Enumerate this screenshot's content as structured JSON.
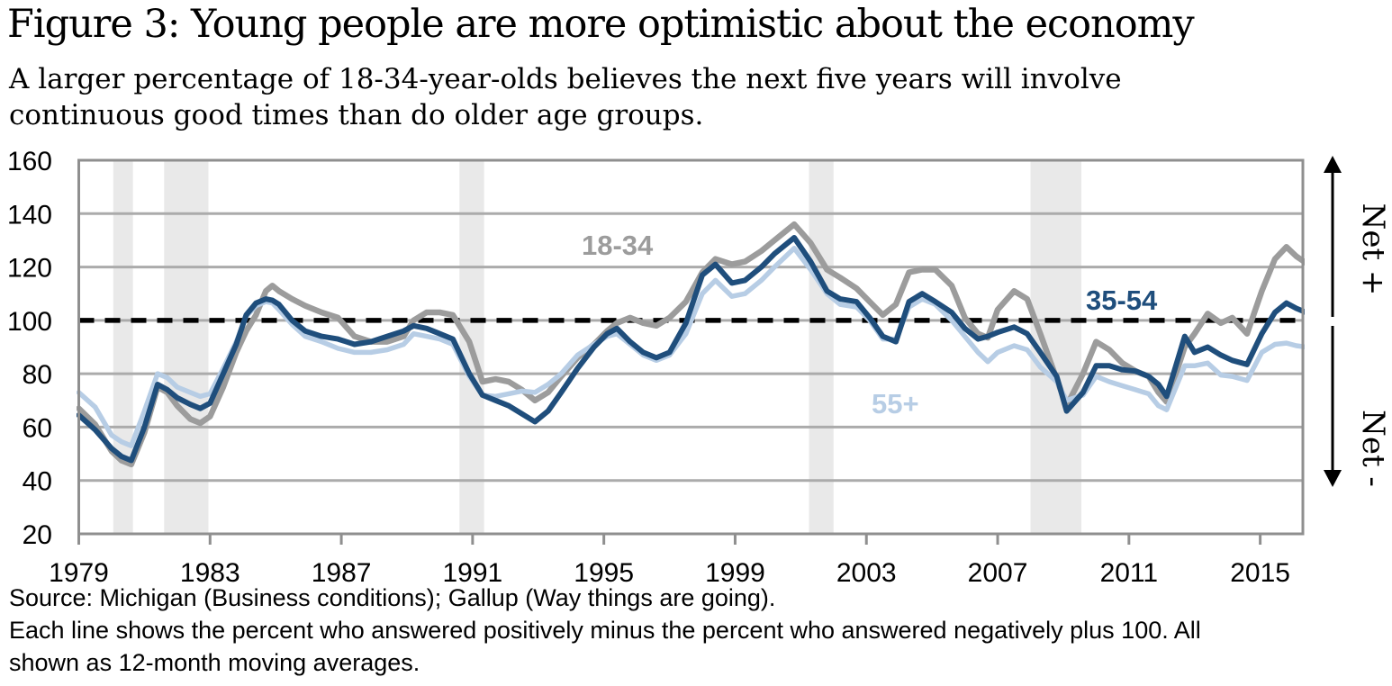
{
  "header": {
    "title": "Figure 3: Young people are more optimistic about the economy",
    "subtitle_line1": "A larger percentage of 18-34-year-olds believes the next five years will involve",
    "subtitle_line2": "continuous good times than do older age groups."
  },
  "annotations": {
    "net_plus": "Net +",
    "net_minus": "Net -"
  },
  "footer": {
    "line1": "Source: Michigan (Business conditions); Gallup (Way things are going).",
    "line2": "Each line shows the percent who answered positively minus the percent who answered negatively plus 100. All",
    "line3": "shown as 12-month moving averages.",
    "text_color": "#000000"
  },
  "chart_data": {
    "type": "line",
    "title": "",
    "xlabel": "",
    "ylabel": "",
    "xlim": [
      1979,
      2016.3
    ],
    "ylim": [
      20,
      160
    ],
    "grid": true,
    "baseline_value": 100,
    "baseline_style": "dashed-black",
    "x_ticks": [
      1979,
      1983,
      1987,
      1991,
      1995,
      1999,
      2003,
      2007,
      2011,
      2015
    ],
    "y_ticks": [
      20,
      40,
      60,
      80,
      100,
      120,
      140,
      160
    ],
    "colors": {
      "grid": "#ababab",
      "frame": "#8f8f8f",
      "recession_band": "#e9e9e9",
      "baseline": "#000000"
    },
    "recession_bands": [
      [
        1980.05,
        1980.65
      ],
      [
        1981.6,
        1982.95
      ],
      [
        1990.6,
        1991.35
      ],
      [
        2001.25,
        2002.0
      ],
      [
        2008.0,
        2009.55
      ]
    ],
    "x": [
      1979.0,
      1979.5,
      1980.0,
      1980.3,
      1980.6,
      1981.0,
      1981.4,
      1981.7,
      1982.0,
      1982.4,
      1982.7,
      1983.0,
      1983.4,
      1983.8,
      1984.1,
      1984.4,
      1984.7,
      1984.9,
      1985.1,
      1985.5,
      1985.9,
      1986.4,
      1986.9,
      1987.4,
      1987.9,
      1988.4,
      1988.9,
      1989.2,
      1989.6,
      1990.0,
      1990.4,
      1990.9,
      1991.3,
      1991.7,
      1992.1,
      1992.5,
      1992.9,
      1993.3,
      1993.7,
      1994.2,
      1994.7,
      1995.1,
      1995.4,
      1995.8,
      1996.2,
      1996.6,
      1997.0,
      1997.5,
      1998.0,
      1998.4,
      1998.9,
      1999.3,
      1999.8,
      2000.2,
      2000.8,
      2001.3,
      2001.8,
      2002.2,
      2002.7,
      2003.1,
      2003.5,
      2003.9,
      2004.3,
      2004.7,
      2005.1,
      2005.6,
      2006.0,
      2006.4,
      2006.7,
      2007.0,
      2007.5,
      2007.9,
      2008.3,
      2008.8,
      2009.1,
      2009.6,
      2010.0,
      2010.4,
      2010.8,
      2011.2,
      2011.6,
      2011.9,
      2012.15,
      2012.7,
      2013.0,
      2013.4,
      2013.8,
      2014.15,
      2014.6,
      2015.05,
      2015.45,
      2015.8,
      2016.1,
      2016.4
    ],
    "series": [
      {
        "name": "18-34",
        "color": "#9c9c9c",
        "values": [
          67,
          61,
          51,
          47.5,
          46,
          58,
          75,
          73,
          68,
          63,
          61.5,
          64,
          75,
          88,
          96,
          102,
          111,
          113,
          111,
          108,
          105.5,
          103,
          101,
          94,
          92,
          92,
          94,
          100,
          103,
          103,
          102,
          92,
          77,
          78,
          77,
          74,
          70,
          73,
          79,
          86,
          91,
          96,
          99,
          101,
          99,
          98,
          101,
          107,
          118,
          123,
          121,
          122,
          126,
          130,
          136,
          129,
          119,
          116,
          112,
          107,
          102,
          106,
          118,
          119,
          119,
          113,
          101,
          95,
          93.5,
          104,
          111,
          108,
          95,
          78,
          68,
          80,
          92,
          89,
          84,
          81,
          79,
          73,
          69.5,
          90,
          95,
          102.5,
          99,
          101,
          95,
          111,
          123,
          127.5,
          124,
          121.5
        ]
      },
      {
        "name": "35-54",
        "color": "#1f4e7c",
        "values": [
          64.5,
          59,
          52,
          49,
          47.5,
          60,
          76,
          74,
          71,
          68.5,
          67,
          69,
          80,
          91,
          102,
          106.5,
          108,
          107.5,
          106,
          100,
          96,
          94,
          93,
          91,
          92,
          94,
          96,
          98,
          97,
          95,
          93,
          80,
          72,
          70,
          68,
          65,
          62,
          66,
          73,
          82,
          90,
          95,
          97,
          92,
          88,
          86,
          88,
          99,
          117,
          121,
          114,
          115,
          120,
          125,
          131,
          122,
          111,
          108,
          107,
          101,
          94,
          92,
          107,
          110,
          107,
          103,
          97,
          93,
          94,
          95.5,
          97.5,
          95,
          88,
          79,
          66,
          73,
          83,
          83,
          81.5,
          81,
          79,
          76,
          71.5,
          94,
          88,
          90,
          87,
          85,
          83.5,
          95,
          103,
          106.5,
          104.5,
          103
        ]
      },
      {
        "name": "55+",
        "color": "#b7cde5",
        "values": [
          73,
          67.5,
          57,
          54.5,
          53,
          66,
          80,
          78.5,
          75,
          73,
          71.5,
          72.5,
          82,
          92,
          101.5,
          105.5,
          107,
          106.5,
          104,
          98.5,
          94,
          92,
          89.5,
          88,
          88,
          89,
          91,
          95,
          94,
          93,
          91,
          79,
          72,
          71.5,
          72.5,
          73.5,
          73,
          76,
          80,
          87,
          91,
          94,
          95,
          91,
          87,
          85,
          87,
          95,
          110,
          115,
          109,
          110,
          115,
          120,
          127,
          119,
          110,
          106,
          105,
          100,
          93,
          93,
          105,
          108,
          106,
          100,
          94,
          88,
          84.5,
          88,
          90.5,
          89,
          82.5,
          77,
          70,
          72,
          79,
          77,
          75.5,
          74,
          72.5,
          68,
          66.5,
          83,
          83,
          84,
          79.5,
          79,
          77.5,
          88,
          91,
          91.5,
          90.5,
          90
        ]
      }
    ],
    "legend_position": "inline-labels"
  }
}
